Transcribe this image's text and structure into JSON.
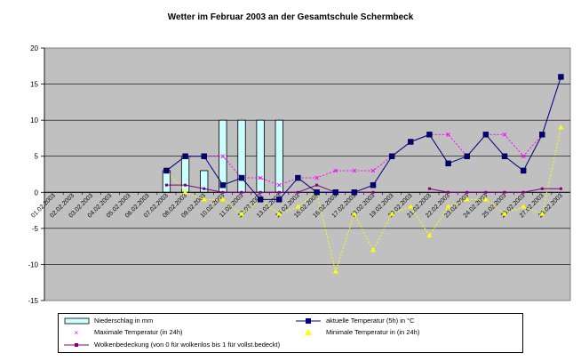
{
  "chart_data": {
    "title": "Wetter im Februar 2003 an der Gesamtschule Schermbeck",
    "type": "bar+line",
    "categories": [
      "01.02.2003",
      "02.02.2003",
      "03.02.2003",
      "04.02.2003",
      "05.02.2003",
      "06.02.2003",
      "07.02.2003",
      "08.02.2003",
      "09.02.2003",
      "10.02.2003",
      "11.02.2003",
      "12.02.2003",
      "13.02.2003",
      "14.02.2003",
      "15.02.2003",
      "16.02.2003",
      "17.02.2003",
      "18.02.2003",
      "19.02.2003",
      "20.02.2003",
      "21.02.2003",
      "22.02.2003",
      "23.02.2003",
      "24.02.2003",
      "25.02.2003",
      "26.02.2003",
      "27.02.2003",
      "28.02.2003"
    ],
    "y_ticks": [
      "20",
      "15",
      "10",
      "5",
      "0",
      "-5",
      "-10",
      "-15"
    ],
    "ylim": [
      -15,
      20
    ],
    "grid": "horizontal",
    "legend_position": "bottom",
    "background_color": "#c0c0c0",
    "series": [
      {
        "name": "Niederschlag in mm",
        "kind": "bar",
        "color": "#ccffff",
        "values": [
          null,
          null,
          null,
          null,
          null,
          null,
          3,
          5,
          3,
          10,
          10,
          10,
          10,
          null,
          null,
          null,
          null,
          null,
          null,
          null,
          null,
          null,
          null,
          null,
          null,
          null,
          null,
          null
        ]
      },
      {
        "name": "aktuelle Temperatur (5h) in °C",
        "kind": "line",
        "color": "#000080",
        "values": [
          null,
          null,
          null,
          null,
          null,
          null,
          3,
          5,
          5,
          1,
          2,
          -1,
          -1,
          2,
          0,
          0,
          0,
          1,
          5,
          7,
          8,
          4,
          5,
          8,
          5,
          3,
          8,
          16
        ]
      },
      {
        "name": "Maximale Temperatur (in 24h)",
        "kind": "dotted",
        "color": "#ff00ff",
        "values": [
          null,
          null,
          null,
          null,
          null,
          null,
          3,
          5,
          5,
          5,
          2,
          2,
          1,
          2,
          2,
          3,
          3,
          3,
          5,
          7,
          8,
          8,
          5,
          8,
          8,
          5,
          8,
          16
        ]
      },
      {
        "name": "Minimale Temperatur in (in 24h)",
        "kind": "dotted",
        "color": "#ffff00",
        "values": [
          null,
          null,
          null,
          null,
          null,
          null,
          3,
          0,
          -1,
          -1,
          -3,
          -1,
          -3,
          -2,
          0,
          -11,
          -3,
          -8,
          -3,
          -2,
          -6,
          -2,
          -1,
          -1,
          -3,
          -2,
          -3,
          9
        ]
      },
      {
        "name": "Wolkenbedeckung (von 0 für wolkenlos bis 1 für vollst.bedeckt)",
        "kind": "line",
        "color": "#800080",
        "values": [
          null,
          null,
          null,
          null,
          null,
          null,
          1,
          1,
          0.5,
          0,
          0,
          0,
          0,
          0,
          1,
          0,
          0,
          0,
          null,
          null,
          0.5,
          0,
          0,
          0,
          0,
          0,
          0.5,
          0.5
        ]
      }
    ]
  },
  "legend": {
    "l0": "Niederschlag in mm",
    "l1": "aktuelle Temperatur (5h) in °C",
    "l2": "Maximale Temperatur (in 24h)",
    "l3": "Minimale Temperatur in (in 24h)",
    "l4": "Wolkenbedeckung (von 0 für wolkenlos bis 1 für vollst.bedeckt)"
  }
}
